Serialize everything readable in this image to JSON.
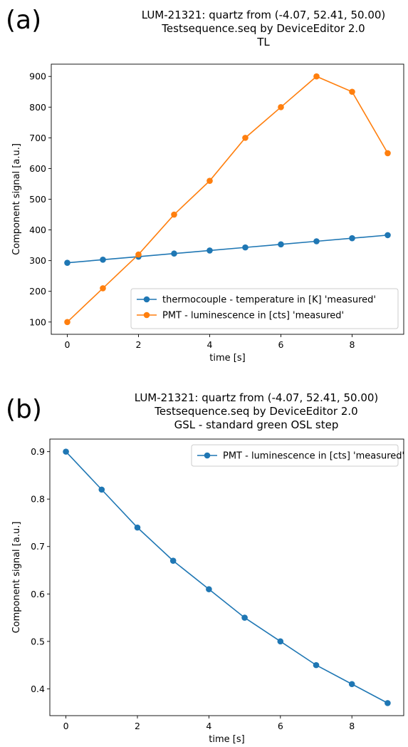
{
  "colors": {
    "series1": "#1f77b4",
    "series2": "#ff7f0e"
  },
  "chart_data": [
    {
      "panel_label": "(a)",
      "type": "line",
      "title": [
        "LUM-21321: quartz from (-4.07, 52.41, 50.00)",
        "Testsequence.seq by DeviceEditor 2.0",
        "TL"
      ],
      "xlabel": "time [s]",
      "ylabel": "Component signal [a.u.]",
      "xlim": [
        -0.45,
        9.45
      ],
      "ylim": [
        60,
        940
      ],
      "xticks": [
        0,
        2,
        4,
        6,
        8
      ],
      "yticks": [
        100,
        200,
        300,
        400,
        500,
        600,
        700,
        800,
        900
      ],
      "xtick_labels": [
        "0",
        "2",
        "4",
        "6",
        "8"
      ],
      "ytick_labels": [
        "100",
        "200",
        "300",
        "400",
        "500",
        "600",
        "700",
        "800",
        "900"
      ],
      "legend_position": "lower-right",
      "grid": false,
      "x": [
        0,
        1,
        2,
        3,
        4,
        5,
        6,
        7,
        8,
        9
      ],
      "series": [
        {
          "name": "thermocouple - temperature in [K] 'measured'",
          "color": "#1f77b4",
          "values": [
            293,
            303,
            313,
            323,
            333,
            343,
            353,
            363,
            373,
            383
          ]
        },
        {
          "name": "PMT - luminescence in [cts] 'measured'",
          "color": "#ff7f0e",
          "values": [
            100,
            210,
            320,
            450,
            560,
            700,
            800,
            900,
            850,
            650
          ]
        }
      ]
    },
    {
      "panel_label": "(b)",
      "type": "line",
      "title": [
        "LUM-21321: quartz from (-4.07, 52.41, 50.00)",
        "Testsequence.seq by DeviceEditor 2.0",
        "GSL - standard green OSL step"
      ],
      "xlabel": "time [s]",
      "ylabel": "Component signal [a.u.]",
      "xlim": [
        -0.45,
        9.45
      ],
      "ylim": [
        0.3435,
        0.9265
      ],
      "xticks": [
        0,
        2,
        4,
        6,
        8
      ],
      "yticks": [
        0.4,
        0.5,
        0.6,
        0.7,
        0.8,
        0.9
      ],
      "xtick_labels": [
        "0",
        "2",
        "4",
        "6",
        "8"
      ],
      "ytick_labels": [
        "0.4",
        "0.5",
        "0.6",
        "0.7",
        "0.8",
        "0.9"
      ],
      "legend_position": "upper-right",
      "grid": false,
      "x": [
        0,
        1,
        2,
        3,
        4,
        5,
        6,
        7,
        8,
        9
      ],
      "series": [
        {
          "name": "PMT - luminescence in [cts] 'measured'",
          "color": "#1f77b4",
          "values": [
            0.9,
            0.82,
            0.74,
            0.67,
            0.61,
            0.55,
            0.5,
            0.45,
            0.41,
            0.37
          ]
        }
      ]
    }
  ]
}
